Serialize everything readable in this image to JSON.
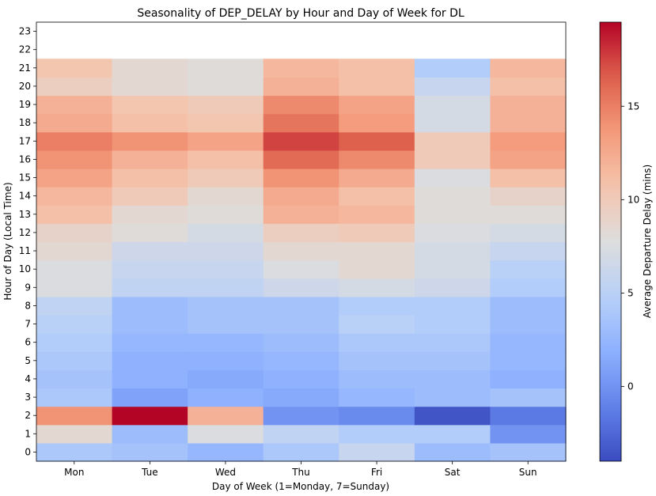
{
  "chart_data": {
    "type": "heatmap",
    "title": "Seasonality of DEP_DELAY by Hour and Day of Week for DL",
    "xlabel": "Day of Week (1=Monday, 7=Sunday)",
    "ylabel": "Hour of Day (Local Time)",
    "colorbar_label": "Average Departure Delay (mins)",
    "colormap": "coolwarm",
    "color_range": [
      -4,
      19.5
    ],
    "colorbar_ticks": [
      0,
      5,
      10,
      15
    ],
    "x_categories": [
      "Mon",
      "Tue",
      "Wed",
      "Thu",
      "Fri",
      "Sat",
      "Sun"
    ],
    "y_ticks": [
      0,
      1,
      2,
      3,
      4,
      5,
      6,
      7,
      8,
      9,
      10,
      11,
      12,
      13,
      14,
      15,
      16,
      17,
      18,
      19,
      20,
      21,
      22,
      23
    ],
    "hours": [
      0,
      1,
      2,
      3,
      4,
      5,
      6,
      7,
      8,
      9,
      10,
      11,
      12,
      13,
      14,
      15,
      16,
      17,
      18,
      19,
      20,
      21
    ],
    "values": [
      [
        4.0,
        3.5,
        2.5,
        4.0,
        6.0,
        3.0,
        3.5
      ],
      [
        8.5,
        3.0,
        7.5,
        5.5,
        4.5,
        4.5,
        0.0
      ],
      [
        14.0,
        19.5,
        12.0,
        0.0,
        -0.5,
        -3.5,
        -1.5
      ],
      [
        4.0,
        1.0,
        2.0,
        1.5,
        2.5,
        3.0,
        3.5
      ],
      [
        3.5,
        2.0,
        1.5,
        2.0,
        3.0,
        3.0,
        2.0
      ],
      [
        4.0,
        2.0,
        2.0,
        2.5,
        3.5,
        3.5,
        2.5
      ],
      [
        4.5,
        2.5,
        2.5,
        3.0,
        4.0,
        4.0,
        2.5
      ],
      [
        5.0,
        3.0,
        3.5,
        3.5,
        5.0,
        4.5,
        3.0
      ],
      [
        5.5,
        3.0,
        3.5,
        3.5,
        4.5,
        4.5,
        3.0
      ],
      [
        7.5,
        5.5,
        5.5,
        6.5,
        7.0,
        6.5,
        4.5
      ],
      [
        7.5,
        6.0,
        6.0,
        7.5,
        8.5,
        7.0,
        5.0
      ],
      [
        8.5,
        6.5,
        6.5,
        8.5,
        8.5,
        7.0,
        6.0
      ],
      [
        9.0,
        8.0,
        7.0,
        9.5,
        10.0,
        7.5,
        7.0
      ],
      [
        11.0,
        8.5,
        8.0,
        12.0,
        11.5,
        8.0,
        8.0
      ],
      [
        11.5,
        10.0,
        8.5,
        12.5,
        11.0,
        8.0,
        9.0
      ],
      [
        13.0,
        11.0,
        10.0,
        14.0,
        12.5,
        7.5,
        11.0
      ],
      [
        14.0,
        12.0,
        11.0,
        16.0,
        14.5,
        10.0,
        13.0
      ],
      [
        15.0,
        14.0,
        13.0,
        17.5,
        16.5,
        10.0,
        13.5
      ],
      [
        12.5,
        11.0,
        10.5,
        15.5,
        13.5,
        7.0,
        12.0
      ],
      [
        12.0,
        10.5,
        10.0,
        14.5,
        13.0,
        7.0,
        12.0
      ],
      [
        9.5,
        8.5,
        8.0,
        12.0,
        11.0,
        6.0,
        11.0
      ],
      [
        10.5,
        8.5,
        8.0,
        11.5,
        11.0,
        4.5,
        11.5
      ]
    ]
  }
}
